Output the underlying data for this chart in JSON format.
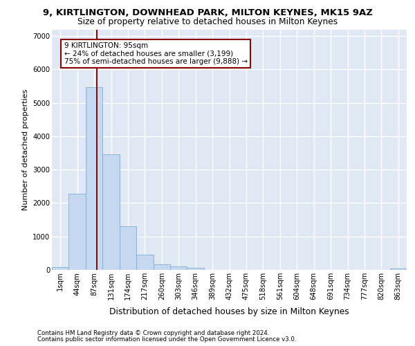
{
  "title_line1": "9, KIRTLINGTON, DOWNHEAD PARK, MILTON KEYNES, MK15 9AZ",
  "title_line2": "Size of property relative to detached houses in Milton Keynes",
  "xlabel": "Distribution of detached houses by size in Milton Keynes",
  "ylabel": "Number of detached properties",
  "footnote1": "Contains HM Land Registry data © Crown copyright and database right 2024.",
  "footnote2": "Contains public sector information licensed under the Open Government Licence v3.0.",
  "bar_labels": [
    "1sqm",
    "44sqm",
    "87sqm",
    "131sqm",
    "174sqm",
    "217sqm",
    "260sqm",
    "303sqm",
    "346sqm",
    "389sqm",
    "432sqm",
    "475sqm",
    "518sqm",
    "561sqm",
    "604sqm",
    "648sqm",
    "691sqm",
    "734sqm",
    "777sqm",
    "820sqm",
    "863sqm"
  ],
  "bar_values": [
    80,
    2280,
    5480,
    3450,
    1310,
    460,
    160,
    95,
    55,
    0,
    0,
    0,
    0,
    0,
    0,
    0,
    0,
    0,
    0,
    0,
    35
  ],
  "bar_color": "#c5d8ef",
  "bar_edgecolor": "#7ab0d8",
  "vline_color": "#8b0000",
  "property_label": "9 KIRTLINGTON: 95sqm",
  "pct_smaller": 24,
  "count_smaller": 3199,
  "pct_larger_semi": 75,
  "count_larger_semi": 9888,
  "vline_index": 2.18,
  "ylim": [
    0,
    7200
  ],
  "yticks": [
    0,
    1000,
    2000,
    3000,
    4000,
    5000,
    6000,
    7000
  ],
  "background_color": "#dfe8f3",
  "grid_color": "#ffffff",
  "title1_fontsize": 9.5,
  "title2_fontsize": 8.8,
  "ylabel_fontsize": 8.0,
  "xlabel_fontsize": 8.8,
  "tick_fontsize": 7.2,
  "annot_fontsize": 7.5,
  "footnote_fontsize": 6.2
}
